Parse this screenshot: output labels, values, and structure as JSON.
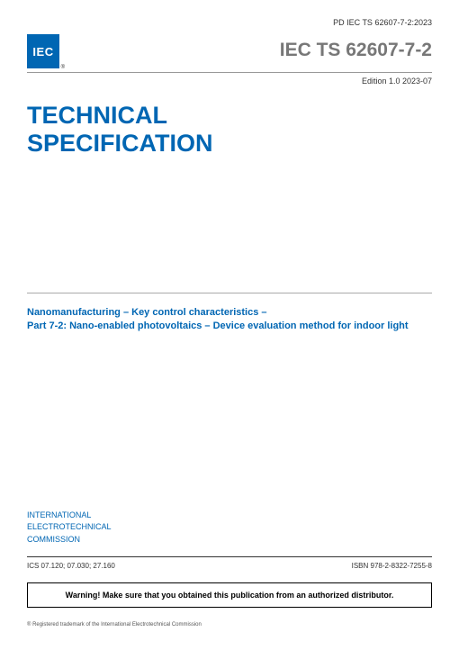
{
  "header_reference": "PD IEC TS 62607-7-2:2023",
  "logo_text": "IEC",
  "logo_reg": "®",
  "standard_code": "IEC TS 62607-7-2",
  "edition_label": "Edition 1.0   2023-07",
  "doc_type_line1": "TECHNICAL",
  "doc_type_line2": "SPECIFICATION",
  "title_line1": "Nanomanufacturing – Key control characteristics –",
  "title_line2": "Part 7-2: Nano-enabled photovoltaics – Device evaluation method for indoor light",
  "org_line1": "INTERNATIONAL",
  "org_line2": "ELECTROTECHNICAL",
  "org_line3": "COMMISSION",
  "ics_codes": "ICS 07.120; 07.030; 27.160",
  "isbn": "ISBN 978-2-8322-7255-8",
  "warning": "Warning! Make sure that you obtained this publication from an authorized distributor.",
  "trademark": "® Registered trademark of the International Electrotechnical Commission",
  "colors": {
    "primary_blue": "#0066b3",
    "grey_code": "#777777",
    "text": "#333333"
  }
}
